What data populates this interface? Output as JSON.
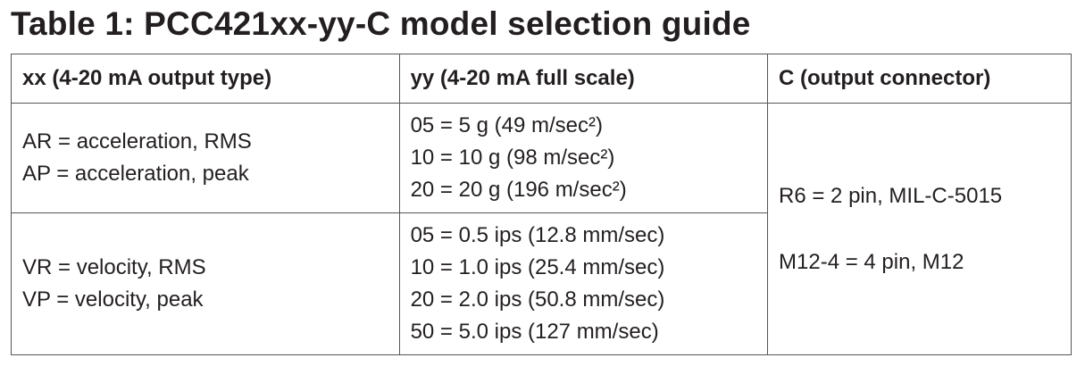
{
  "title": "Table 1: PCC421xx-yy-C model selection guide",
  "table": {
    "headers": [
      "xx (4-20 mA output type)",
      "yy (4-20 mA full scale)",
      "C (output connector)"
    ],
    "rows": [
      {
        "output_type": [
          "AR = acceleration, RMS",
          "AP = acceleration, peak"
        ],
        "full_scale": [
          "05 = 5 g (49 m/sec²)",
          "10 = 10 g (98 m/sec²)",
          "20 = 20 g (196 m/sec²)"
        ]
      },
      {
        "output_type": [
          "VR = velocity, RMS",
          "VP = velocity, peak"
        ],
        "full_scale": [
          "05 = 0.5 ips (12.8 mm/sec)",
          "10 = 1.0 ips (25.4 mm/sec)",
          "20 = 2.0 ips (50.8 mm/sec)",
          "50 = 5.0 ips (127 mm/sec)"
        ]
      }
    ],
    "connector": [
      "R6 = 2 pin, MIL-C-5015",
      "M12-4 = 4 pin, M12"
    ]
  }
}
